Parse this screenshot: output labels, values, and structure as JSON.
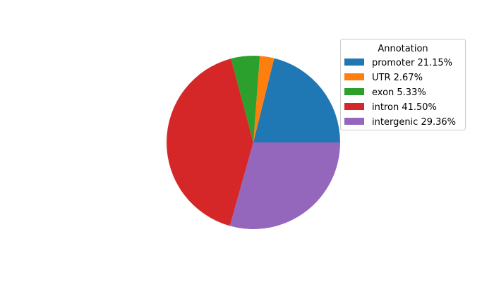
{
  "chart_data": {
    "type": "pie",
    "title": "",
    "categories": [
      "promoter",
      "UTR",
      "exon",
      "intron",
      "intergenic"
    ],
    "values": [
      21.15,
      2.67,
      5.33,
      41.5,
      29.36
    ],
    "colors": [
      "#1f77b4",
      "#ff7f0e",
      "#2ca02c",
      "#d62728",
      "#9467bd"
    ],
    "start_angle_deg": 0,
    "direction": "counterclockwise",
    "legend": {
      "title": "Annotation",
      "placement": "upper-right",
      "entries": [
        "promoter 21.15%",
        "UTR 2.67%",
        "exon 5.33%",
        "intron 41.50%",
        "intergenic 29.36%"
      ]
    }
  }
}
